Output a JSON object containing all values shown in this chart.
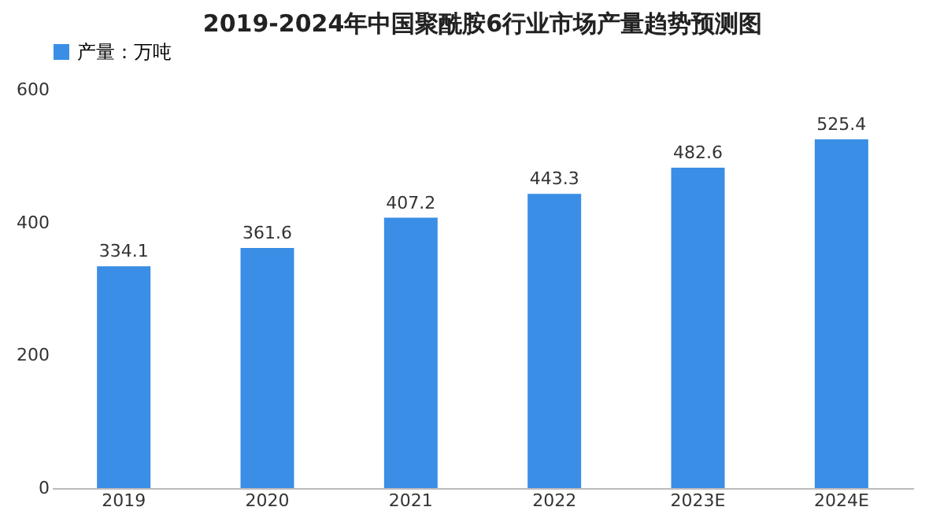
{
  "chart_data": {
    "type": "bar",
    "title": "2019-2024年中国聚酰胺6行业市场产量趋势预测图",
    "categories": [
      "2019",
      "2020",
      "2021",
      "2022",
      "2023E",
      "2024E"
    ],
    "series": [
      {
        "name": "产量：万吨",
        "color": "#3a8ee6",
        "values": [
          334.1,
          361.6,
          407.2,
          443.3,
          482.6,
          525.4
        ]
      }
    ],
    "ylim": [
      0,
      600
    ],
    "yticks": [
      0,
      200,
      400,
      600
    ],
    "grid": false,
    "legend": "top",
    "data_labels": true
  }
}
